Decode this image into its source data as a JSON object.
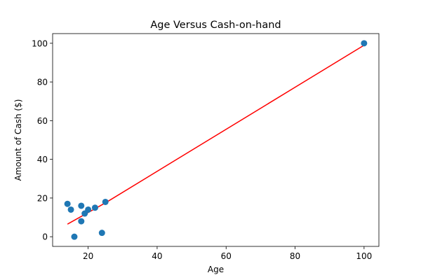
{
  "chart_data": {
    "type": "scatter",
    "title": "Age Versus Cash-on-hand",
    "xlabel": "Age",
    "ylabel": "Amount of Cash ($)",
    "xlim": [
      9.7,
      104.3
    ],
    "ylim": [
      -5,
      105
    ],
    "xticks": [
      20,
      40,
      60,
      80,
      100
    ],
    "yticks": [
      0,
      20,
      40,
      60,
      80,
      100
    ],
    "grid": false,
    "points": {
      "x": [
        14,
        15,
        16,
        18,
        18,
        19,
        20,
        22,
        24,
        25,
        100
      ],
      "y": [
        17,
        14,
        0,
        16,
        8,
        12,
        14,
        15,
        2,
        18,
        100
      ]
    },
    "fit_line": {
      "x": [
        14,
        15,
        16,
        18,
        18,
        19,
        20,
        22,
        24,
        25,
        100
      ],
      "y": [
        6.5,
        7.5,
        8.5,
        10.5,
        10.5,
        11.5,
        12.5,
        14.5,
        16.5,
        17.5,
        99
      ]
    },
    "colors": {
      "points": "#1f77b4",
      "fit_line": "#ff0000"
    }
  }
}
